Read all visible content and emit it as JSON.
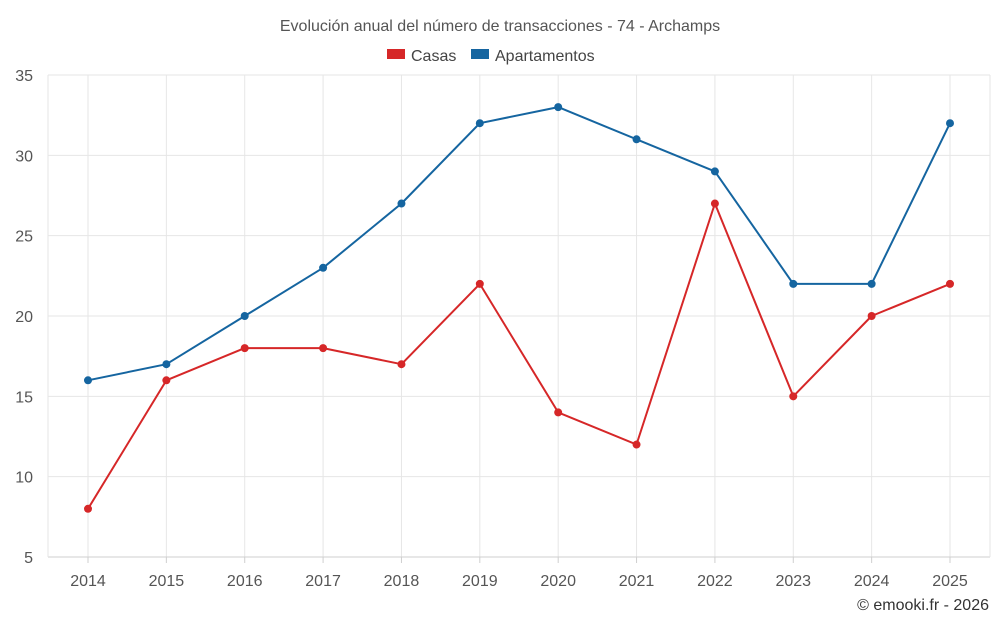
{
  "chart_data": {
    "type": "line",
    "title": "Evolución anual del número de transacciones - 74 - Archamps",
    "categories": [
      "2014",
      "2015",
      "2016",
      "2017",
      "2018",
      "2019",
      "2020",
      "2021",
      "2022",
      "2023",
      "2024",
      "2025"
    ],
    "series": [
      {
        "name": "Casas",
        "color": "#d62728",
        "values": [
          8,
          16,
          18,
          18,
          17,
          22,
          14,
          12,
          27,
          15,
          20,
          22
        ]
      },
      {
        "name": "Apartamentos",
        "color": "#1565a0",
        "values": [
          16,
          17,
          20,
          23,
          27,
          32,
          33,
          31,
          29,
          22,
          22,
          32
        ]
      }
    ],
    "ylim": [
      5,
      35
    ],
    "yticks": [
      "5",
      "10",
      "15",
      "20",
      "25",
      "30",
      "35"
    ],
    "grid": true,
    "legend": "top-center",
    "xlabel": "",
    "ylabel": ""
  },
  "credit": "© emooki.fr - 2026"
}
